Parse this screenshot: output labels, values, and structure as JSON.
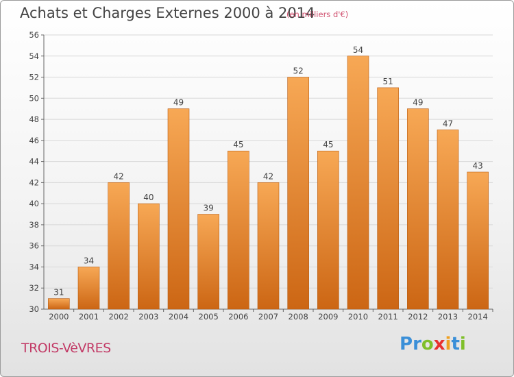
{
  "header": {
    "title": "Achats et Charges Externes 2000 à 2014",
    "unit_note": "(en milliers d'€)"
  },
  "location": "TROIS-VèVRES",
  "logo": {
    "text": "Proxiti",
    "letters": [
      {
        "char": "P",
        "color": "#3a8fd8"
      },
      {
        "char": "r",
        "color": "#3a8fd8"
      },
      {
        "char": "o",
        "color": "#7fbf2a"
      },
      {
        "char": "x",
        "color": "#e8312f"
      },
      {
        "char": "i",
        "color": "#f0a020"
      },
      {
        "char": "t",
        "color": "#3a8fd8"
      },
      {
        "char": "i",
        "color": "#7fbf2a"
      }
    ]
  },
  "colors": {
    "bar_top": "#f7a855",
    "bar_bottom": "#cc6614",
    "bar_stroke": "#b85c12",
    "grid": "#d7d7d7",
    "axis_text": "#444444"
  },
  "chart_data": {
    "type": "bar",
    "title": "Achats et Charges Externes 2000 à 2014",
    "categories": [
      "2000",
      "2001",
      "2002",
      "2003",
      "2004",
      "2005",
      "2006",
      "2007",
      "2008",
      "2009",
      "2010",
      "2011",
      "2012",
      "2013",
      "2014"
    ],
    "values": [
      31,
      34,
      42,
      40,
      49,
      39,
      45,
      42,
      52,
      45,
      54,
      51,
      49,
      47,
      43
    ],
    "ylim": [
      30,
      56
    ],
    "yticks": [
      30,
      32,
      34,
      36,
      38,
      40,
      42,
      44,
      46,
      48,
      50,
      52,
      54,
      56
    ],
    "grid": true
  }
}
